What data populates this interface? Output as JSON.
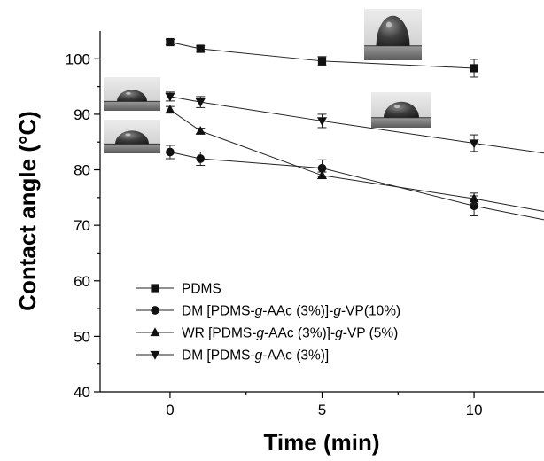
{
  "chart_data": {
    "type": "line",
    "xlabel": "Time (min)",
    "ylabel": "Contact angle (°C)",
    "xlim": [
      -2.3,
      12.3
    ],
    "ylim": [
      40,
      105
    ],
    "x_ticks": [
      0,
      5,
      10
    ],
    "x_tick_labels": [
      "0",
      "5",
      "10"
    ],
    "y_ticks": [
      40,
      50,
      60,
      70,
      80,
      90,
      100
    ],
    "y_tick_labels": [
      "40",
      "50",
      "60",
      "70",
      "80",
      "90",
      "100"
    ],
    "legend_position": "bottom-left",
    "series": [
      {
        "name": "PDMS",
        "legend_parts": [
          {
            "t": "PDMS",
            "i": false
          }
        ],
        "marker": "square",
        "points": [
          {
            "x": 0,
            "y": 103.0,
            "err": 0.5
          },
          {
            "x": 1,
            "y": 101.8,
            "err": 0.5
          },
          {
            "x": 5,
            "y": 99.6,
            "err": 0.8
          },
          {
            "x": 10,
            "y": 98.3,
            "err": 1.6
          }
        ]
      },
      {
        "name": "DM [PDMS-g-AAc (3%)]-g-VP(10%)",
        "legend_parts": [
          {
            "t": "DM [PDMS-",
            "i": false
          },
          {
            "t": "g",
            "i": true
          },
          {
            "t": "-AAc (3%)]-",
            "i": false
          },
          {
            "t": "g",
            "i": true
          },
          {
            "t": "-VP(10%)",
            "i": false
          }
        ],
        "marker": "circle",
        "points": [
          {
            "x": 0,
            "y": 83.2,
            "err": 1.2
          },
          {
            "x": 1,
            "y": 82.0,
            "err": 1.2
          },
          {
            "x": 5,
            "y": 80.3,
            "err": 1.5
          },
          {
            "x": 10,
            "y": 73.5,
            "err": 1.8
          },
          {
            "x": 12.3,
            "y": 71.0,
            "err": 0
          }
        ]
      },
      {
        "name": "WR [PDMS-g-AAc (3%)]-g-VP (5%)",
        "legend_parts": [
          {
            "t": "WR [PDMS-",
            "i": false
          },
          {
            "t": "g",
            "i": true
          },
          {
            "t": "-AAc (3%)]-",
            "i": false
          },
          {
            "t": "g",
            "i": true
          },
          {
            "t": "-VP (5%)",
            "i": false
          }
        ],
        "marker": "triangle-up",
        "points": [
          {
            "x": 0,
            "y": 90.8,
            "err": 0.6
          },
          {
            "x": 1,
            "y": 87.0,
            "err": 0.5
          },
          {
            "x": 5,
            "y": 79.0,
            "err": 0.6
          },
          {
            "x": 10,
            "y": 74.8,
            "err": 1.0
          },
          {
            "x": 12.3,
            "y": 72.5,
            "err": 0
          }
        ]
      },
      {
        "name": "DM [PDMS-g-AAc (3%)]",
        "legend_parts": [
          {
            "t": "DM [PDMS-",
            "i": false
          },
          {
            "t": "g",
            "i": true
          },
          {
            "t": "-AAc (3%)]",
            "i": false
          }
        ],
        "marker": "triangle-down",
        "points": [
          {
            "x": 0,
            "y": 93.2,
            "err": 0.8
          },
          {
            "x": 1,
            "y": 92.2,
            "err": 1.0
          },
          {
            "x": 5,
            "y": 88.8,
            "err": 1.2
          },
          {
            "x": 10,
            "y": 84.8,
            "err": 1.5
          },
          {
            "x": 12.3,
            "y": 83.0,
            "err": 0
          }
        ]
      }
    ],
    "insets": [
      {
        "name": "droplet-inset-pdms",
        "shape": "tall-dome",
        "near_series": "PDMS"
      },
      {
        "name": "droplet-inset-dm-grafted",
        "shape": "flat-dome",
        "near_series": "DM [PDMS-g-AAc (3%)]"
      },
      {
        "name": "droplet-inset-wr-grafted",
        "shape": "flat-dome",
        "near_series": "WR [PDMS-g-AAc (3%)]-g-VP (5%)"
      },
      {
        "name": "droplet-inset-dm-10min",
        "shape": "medium-dome",
        "near_series": "DM [PDMS-g-AAc (3%)]"
      }
    ]
  }
}
